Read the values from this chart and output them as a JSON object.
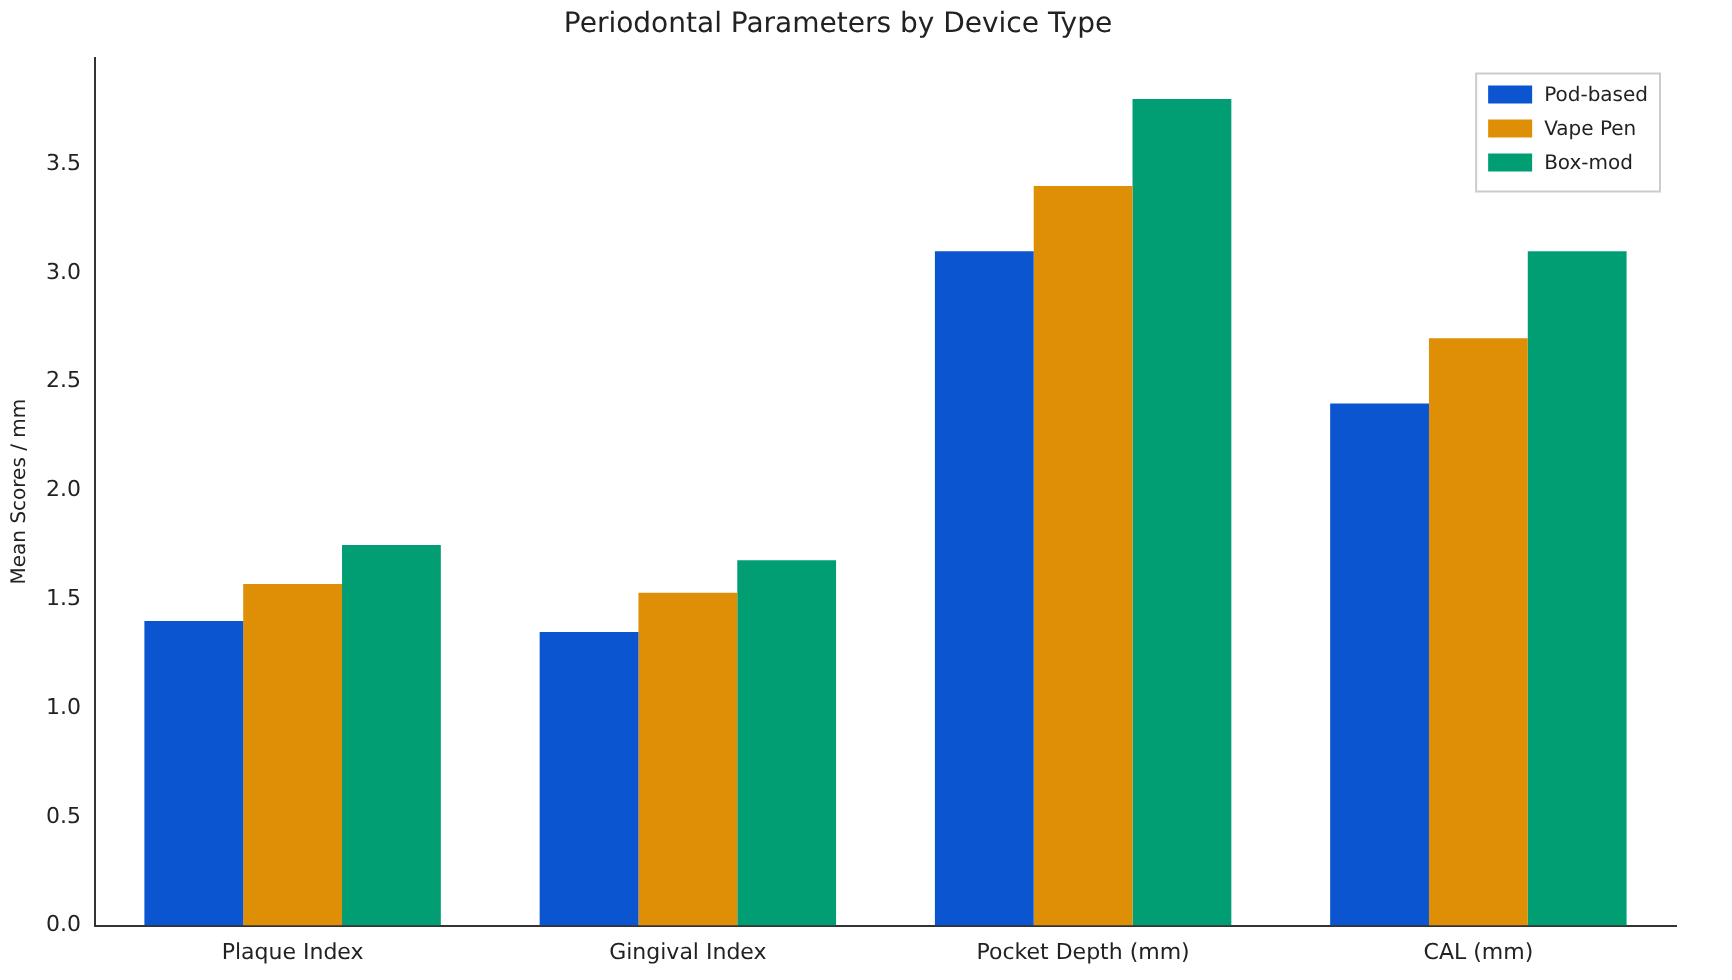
{
  "chart_data": {
    "type": "bar",
    "title": "Periodontal Parameters by Device Type",
    "ylabel": "Mean Scores / mm",
    "categories": [
      "Plaque Index",
      "Gingival Index",
      "Pocket Depth (mm)",
      "CAL (mm)"
    ],
    "series": [
      {
        "name": "Pod-based",
        "color": "#0b55d0",
        "values": [
          1.4,
          1.35,
          3.1,
          2.4
        ]
      },
      {
        "name": "Vape Pen",
        "color": "#de8f05",
        "values": [
          1.57,
          1.53,
          3.4,
          2.7
        ]
      },
      {
        "name": "Box-mod",
        "color": "#029e73",
        "values": [
          1.75,
          1.68,
          3.8,
          3.1
        ]
      }
    ],
    "ylim": [
      0,
      3.99
    ],
    "yticks": [
      {
        "value": 0,
        "label": "0.0"
      },
      0.5,
      {
        "value": 1,
        "label": "1.0"
      },
      1.5,
      {
        "value": 2,
        "label": "2.0"
      },
      2.5,
      {
        "value": 3,
        "label": "3.0"
      },
      3.5
    ],
    "grid": false,
    "legend": "top right"
  }
}
